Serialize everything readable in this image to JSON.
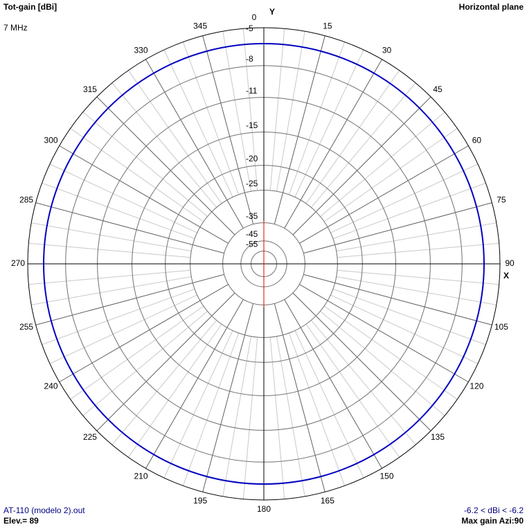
{
  "chart_data": {
    "type": "polar",
    "title": "Tot-gain [dBi]",
    "subtitle": "7 MHz",
    "plane": "Horizontal plane",
    "y_axis_label": "Y",
    "x_axis_label": "X",
    "file": "AT-110 (modelo 2).out",
    "elevation": "Elev.= 89",
    "range_text": "-6.2 < dBi < -6.2",
    "max_gain": "Max gain Azi:90",
    "log_scale": true,
    "rmax": -5,
    "rings": [
      -5,
      -8,
      -11,
      -15,
      -20,
      -25,
      -35,
      -45,
      -55
    ],
    "angle_ticks": [
      0,
      15,
      30,
      45,
      60,
      75,
      90,
      105,
      120,
      135,
      150,
      165,
      180,
      195,
      210,
      225,
      240,
      255,
      270,
      285,
      300,
      315,
      330,
      345
    ],
    "grid": true,
    "series": [
      {
        "color": "#0000c0",
        "x": [
          0,
          15,
          30,
          45,
          60,
          75,
          90,
          105,
          120,
          135,
          150,
          165,
          180,
          195,
          210,
          225,
          240,
          255,
          270,
          285,
          300,
          315,
          330,
          345
        ],
        "values": [
          -6.2,
          -6.2,
          -6.2,
          -6.2,
          -6.2,
          -6.2,
          -6.2,
          -6.2,
          -6.2,
          -6.2,
          -6.2,
          -6.2,
          -6.2,
          -6.2,
          -6.2,
          -6.2,
          -6.2,
          -6.2,
          -6.2,
          -6.2,
          -6.2,
          -6.2,
          -6.2,
          -6.2
        ]
      }
    ]
  }
}
